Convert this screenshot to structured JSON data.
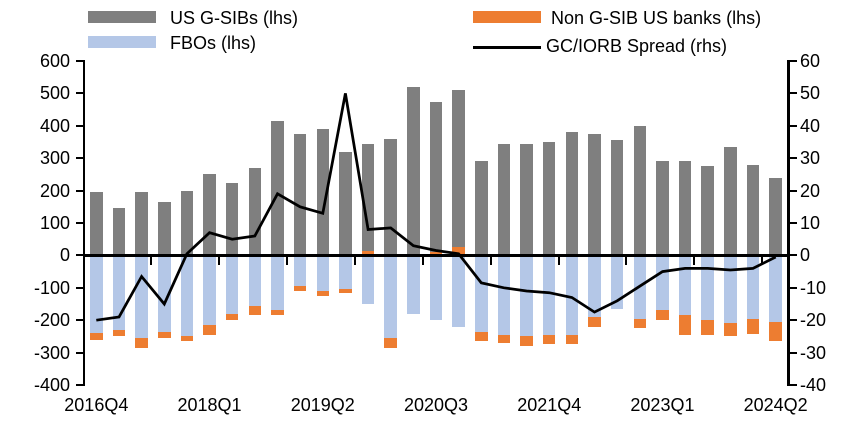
{
  "legend": {
    "items": [
      {
        "label": "US G-SIBs (lhs)",
        "color": "#7f7f7f",
        "swatch": "box"
      },
      {
        "label": "FBOs (lhs)",
        "color": "#b4c7e7",
        "swatch": "box"
      },
      {
        "label": "Non G-SIB US banks (lhs)",
        "color": "#ed7d31",
        "swatch": "box"
      },
      {
        "label": "GC/IORB Spread (rhs)",
        "color": "#000000",
        "swatch": "line"
      }
    ]
  },
  "chart_data": {
    "type": "bar",
    "subtype": "stacked-bar-with-line",
    "categories": [
      "2016Q4",
      "2017Q1",
      "2017Q2",
      "2017Q3",
      "2017Q4",
      "2018Q1",
      "2018Q2",
      "2018Q3",
      "2018Q4",
      "2019Q1",
      "2019Q2",
      "2019Q3",
      "2019Q4",
      "2020Q1",
      "2020Q2",
      "2020Q3",
      "2020Q4",
      "2021Q1",
      "2021Q2",
      "2021Q3",
      "2021Q4",
      "2022Q1",
      "2022Q2",
      "2022Q3",
      "2022Q4",
      "2023Q1",
      "2023Q2",
      "2023Q3",
      "2023Q4",
      "2024Q1",
      "2024Q2"
    ],
    "series": [
      {
        "name": "US G-SIBs (lhs)",
        "axis": "left",
        "render": "bar",
        "color": "#7f7f7f",
        "values": [
          195,
          145,
          195,
          165,
          200,
          250,
          225,
          270,
          415,
          375,
          390,
          320,
          330,
          360,
          520,
          465,
          485,
          290,
          345,
          345,
          350,
          380,
          375,
          355,
          400,
          290,
          290,
          275,
          335,
          280,
          240
        ]
      },
      {
        "name": "Non G-SIB US banks (lhs)",
        "axis": "left",
        "render": "bar",
        "color": "#ed7d31",
        "values": [
          -20,
          -20,
          -30,
          -20,
          -15,
          -30,
          -20,
          -30,
          -15,
          -15,
          -15,
          -10,
          15,
          -30,
          0,
          10,
          25,
          -30,
          -25,
          -30,
          -28,
          -30,
          -30,
          0,
          -30,
          -30,
          -60,
          -45,
          -40,
          -48,
          -60
        ]
      },
      {
        "name": "FBOs (lhs)",
        "axis": "left",
        "render": "bar",
        "color": "#b4c7e7",
        "values": [
          -240,
          -230,
          -255,
          -235,
          -250,
          -215,
          -180,
          -155,
          -170,
          -95,
          -110,
          -105,
          -150,
          -255,
          -180,
          -200,
          -220,
          -235,
          -245,
          -250,
          -245,
          -245,
          -190,
          -165,
          -195,
          -170,
          -185,
          -200,
          -210,
          -195,
          -205
        ]
      },
      {
        "name": "GC/IORB Spread (rhs)",
        "axis": "right",
        "render": "line",
        "color": "#000000",
        "values": [
          -20,
          -19,
          -6.5,
          -15,
          0.5,
          7,
          5,
          6,
          19,
          15,
          13,
          50,
          8,
          8.5,
          3,
          1.5,
          0.5,
          -8.5,
          -10,
          -11,
          -11.5,
          -13,
          -17.5,
          -14,
          -9.5,
          -5,
          -4,
          -4,
          -4.5,
          -4,
          -0.5
        ]
      }
    ],
    "axes": {
      "left": {
        "min": -400,
        "max": 600,
        "tick_labels": [
          "600",
          "500",
          "400",
          "300",
          "200",
          "100",
          "0",
          "-100",
          "-200",
          "-300",
          "-400"
        ]
      },
      "right": {
        "min": -40,
        "max": 60,
        "tick_labels": [
          "60",
          "50",
          "40",
          "30",
          "20",
          "10",
          "0",
          "-10",
          "-20",
          "-30",
          "-40"
        ]
      },
      "x": {
        "labeled_category_indices": [
          0,
          5,
          10,
          15,
          20,
          25,
          30
        ],
        "labels": [
          "2016Q4",
          "2018Q1",
          "2019Q2",
          "2020Q3",
          "2021Q4",
          "2023Q1",
          "2024Q2"
        ],
        "minor_tick_offsets": [
          2.41,
          5.41,
          8.41,
          11.41,
          14.41,
          17.41,
          20.41,
          23.41,
          26.41,
          29.41
        ]
      }
    },
    "title": "",
    "grid": false,
    "legend_position": "top"
  }
}
